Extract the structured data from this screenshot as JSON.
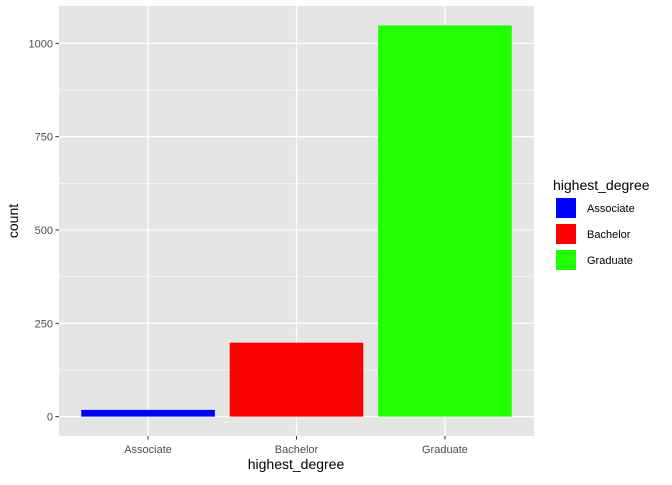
{
  "chart_data": {
    "type": "bar",
    "categories": [
      "Associate",
      "Bachelor",
      "Graduate"
    ],
    "values": [
      18,
      198,
      1048
    ],
    "colors": [
      "#0000FF",
      "#FF0000",
      "#22FF00"
    ],
    "xlabel": "highest_degree",
    "ylabel": "count",
    "yticks": [
      0,
      250,
      500,
      750,
      1000
    ],
    "ylim": [
      -52,
      1100
    ],
    "grid": true,
    "panel_background": "#E5E5E5",
    "grid_color": "#FFFFFF",
    "legend": {
      "title": "highest_degree",
      "placement": "right",
      "entries": [
        "Associate",
        "Bachelor",
        "Graduate"
      ]
    }
  }
}
